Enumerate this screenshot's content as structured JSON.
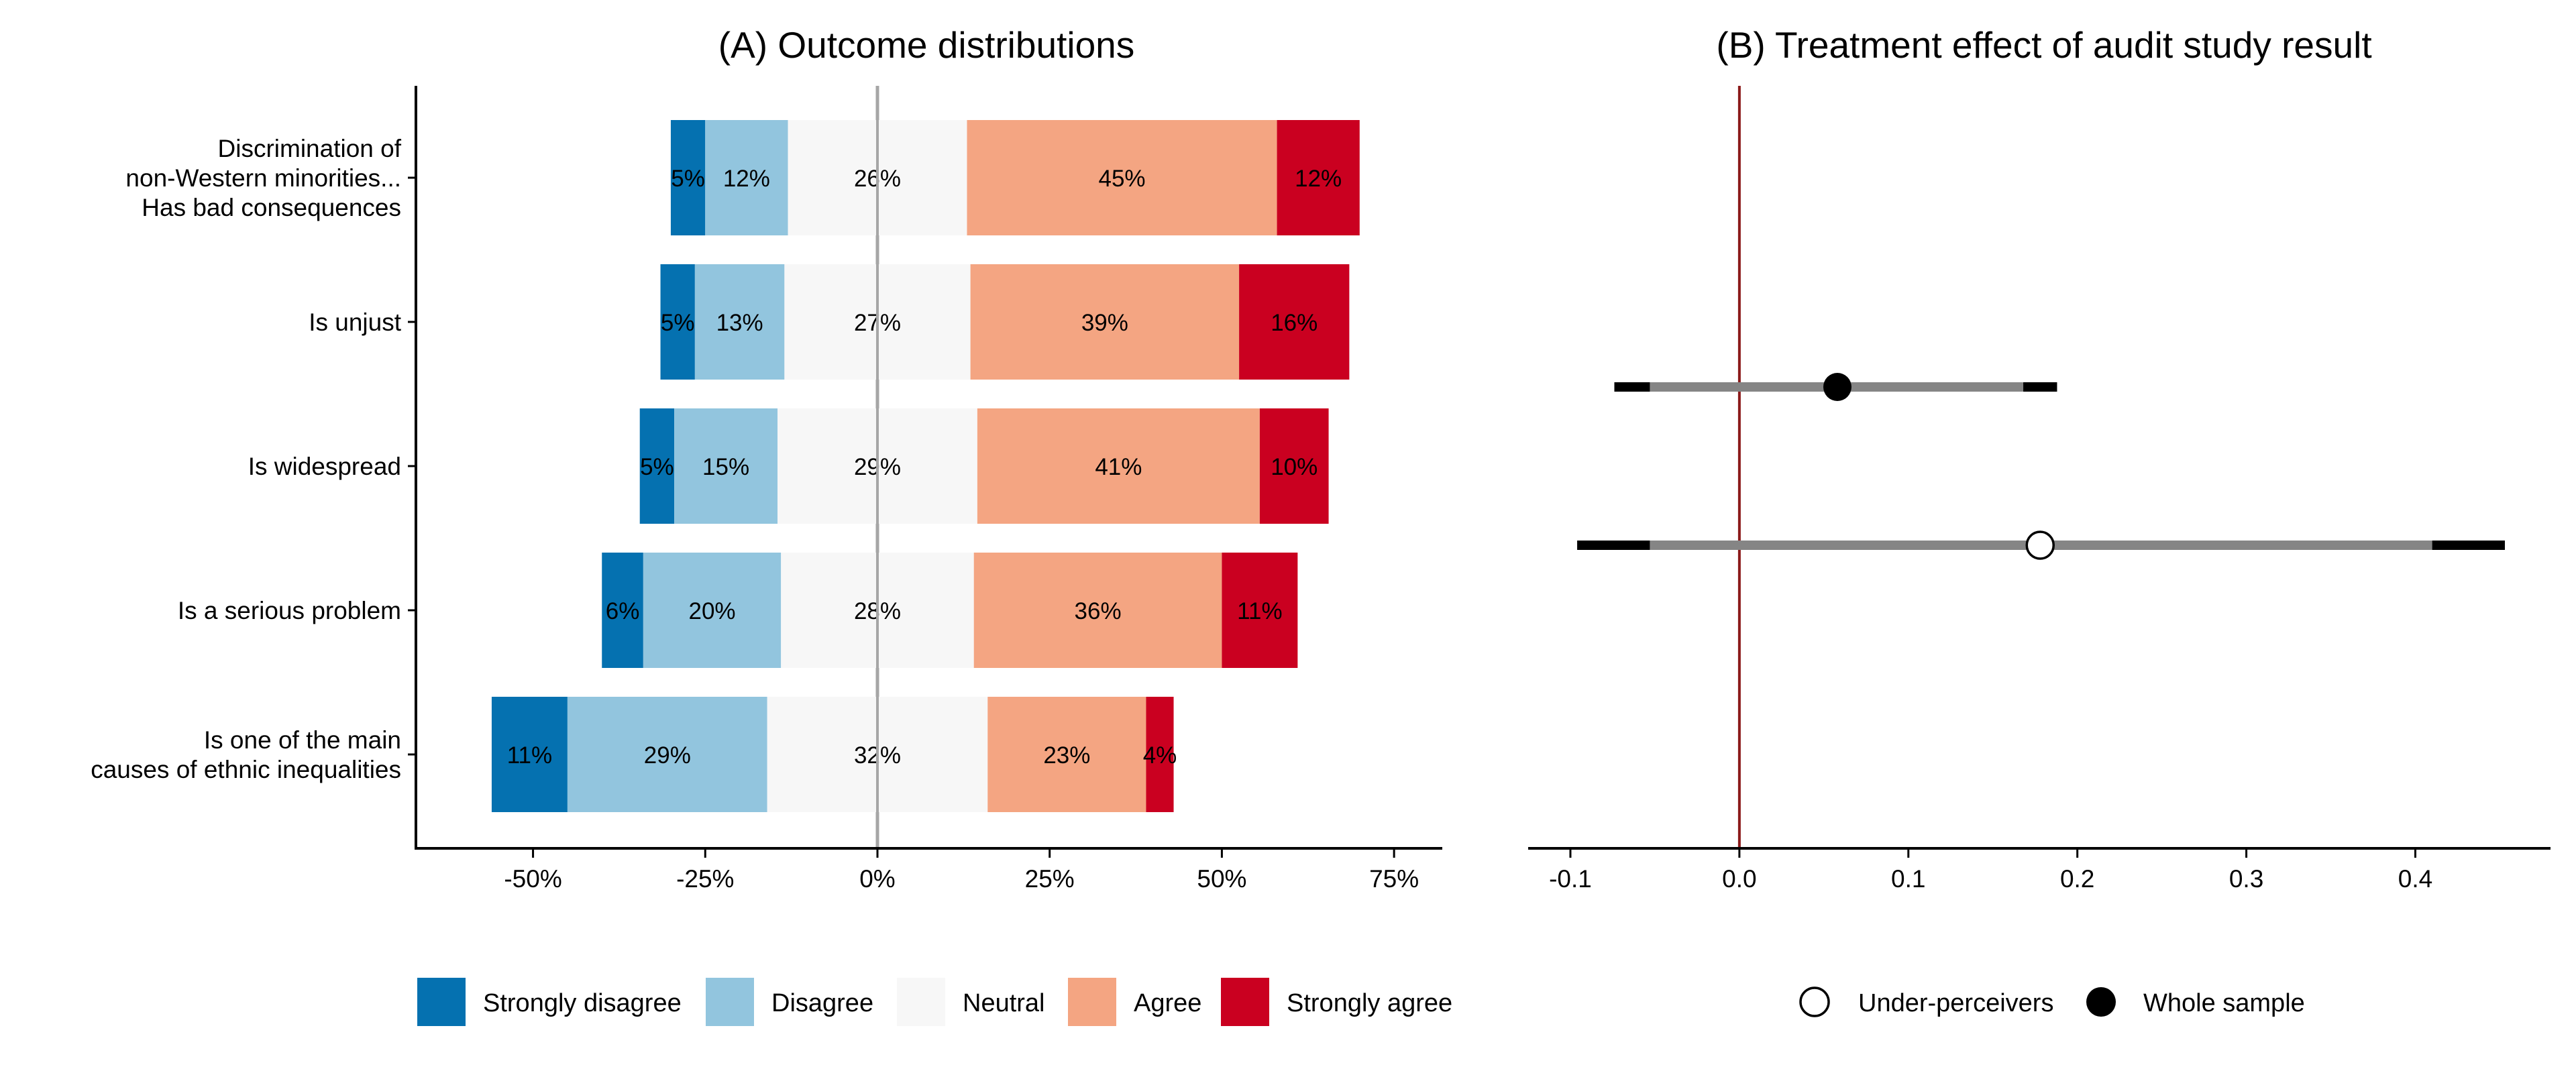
{
  "chart_data": [
    {
      "type": "bar",
      "subtype": "diverging-stacked-bar",
      "title": "(A) Outcome distributions",
      "xlim": [
        -0.67,
        0.82
      ],
      "x_ticks": [
        -0.5,
        -0.25,
        0,
        0.25,
        0.5,
        0.75
      ],
      "x_tick_labels": [
        "-50%",
        "-25%",
        "0%",
        "25%",
        "50%",
        "75%"
      ],
      "categories": [
        [
          "Discrimination of",
          "non-Western minorities...",
          "Has bad consequences"
        ],
        [
          "Is unjust"
        ],
        [
          "Is widespread"
        ],
        [
          "Is a serious problem"
        ],
        [
          "Is one of the main",
          "causes of ethnic inequalities"
        ]
      ],
      "series": [
        {
          "name": "Strongly disagree",
          "color": "#0571b0",
          "values": [
            0.05,
            0.05,
            0.05,
            0.06,
            0.11
          ],
          "labels": [
            "5%",
            "5%",
            "5%",
            "6%",
            "11%"
          ]
        },
        {
          "name": "Disagree",
          "color": "#92c5de",
          "values": [
            0.12,
            0.13,
            0.15,
            0.2,
            0.29
          ],
          "labels": [
            "12%",
            "13%",
            "15%",
            "20%",
            "29%"
          ]
        },
        {
          "name": "Neutral",
          "color": "#f7f7f7",
          "values": [
            0.26,
            0.27,
            0.29,
            0.28,
            0.32
          ],
          "labels": [
            "26%",
            "27%",
            "29%",
            "28%",
            "32%"
          ]
        },
        {
          "name": "Agree",
          "color": "#f4a582",
          "values": [
            0.45,
            0.39,
            0.41,
            0.36,
            0.23
          ],
          "labels": [
            "45%",
            "39%",
            "41%",
            "36%",
            "23%"
          ]
        },
        {
          "name": "Strongly agree",
          "color": "#ca0020",
          "values": [
            0.12,
            0.16,
            0.1,
            0.11,
            0.04
          ],
          "labels": [
            "12%",
            "16%",
            "10%",
            "11%",
            "4%"
          ]
        }
      ],
      "legend": "bottom"
    },
    {
      "type": "scatter",
      "subtype": "coefficient-plot",
      "title": "(B) Treatment effect of audit study result",
      "xlim": [
        -0.125,
        0.48
      ],
      "x_ticks": [
        -0.1,
        0.0,
        0.1,
        0.2,
        0.3,
        0.4
      ],
      "x_tick_labels": [
        "-0.1",
        "0.0",
        "0.1",
        "0.2",
        "0.3",
        "0.4"
      ],
      "reference_line": 0,
      "reference_color": "#8b1a1a",
      "series": [
        {
          "name": "Whole sample",
          "marker": "filled-circle",
          "estimate": 0.058,
          "ci_outer": [
            -0.074,
            0.188
          ],
          "ci_inner": [
            -0.053,
            0.168
          ]
        },
        {
          "name": "Under-perceivers",
          "marker": "open-circle",
          "estimate": 0.178,
          "ci_outer": [
            -0.096,
            0.453
          ],
          "ci_inner": [
            -0.053,
            0.41
          ]
        }
      ],
      "legend": "bottom"
    }
  ]
}
